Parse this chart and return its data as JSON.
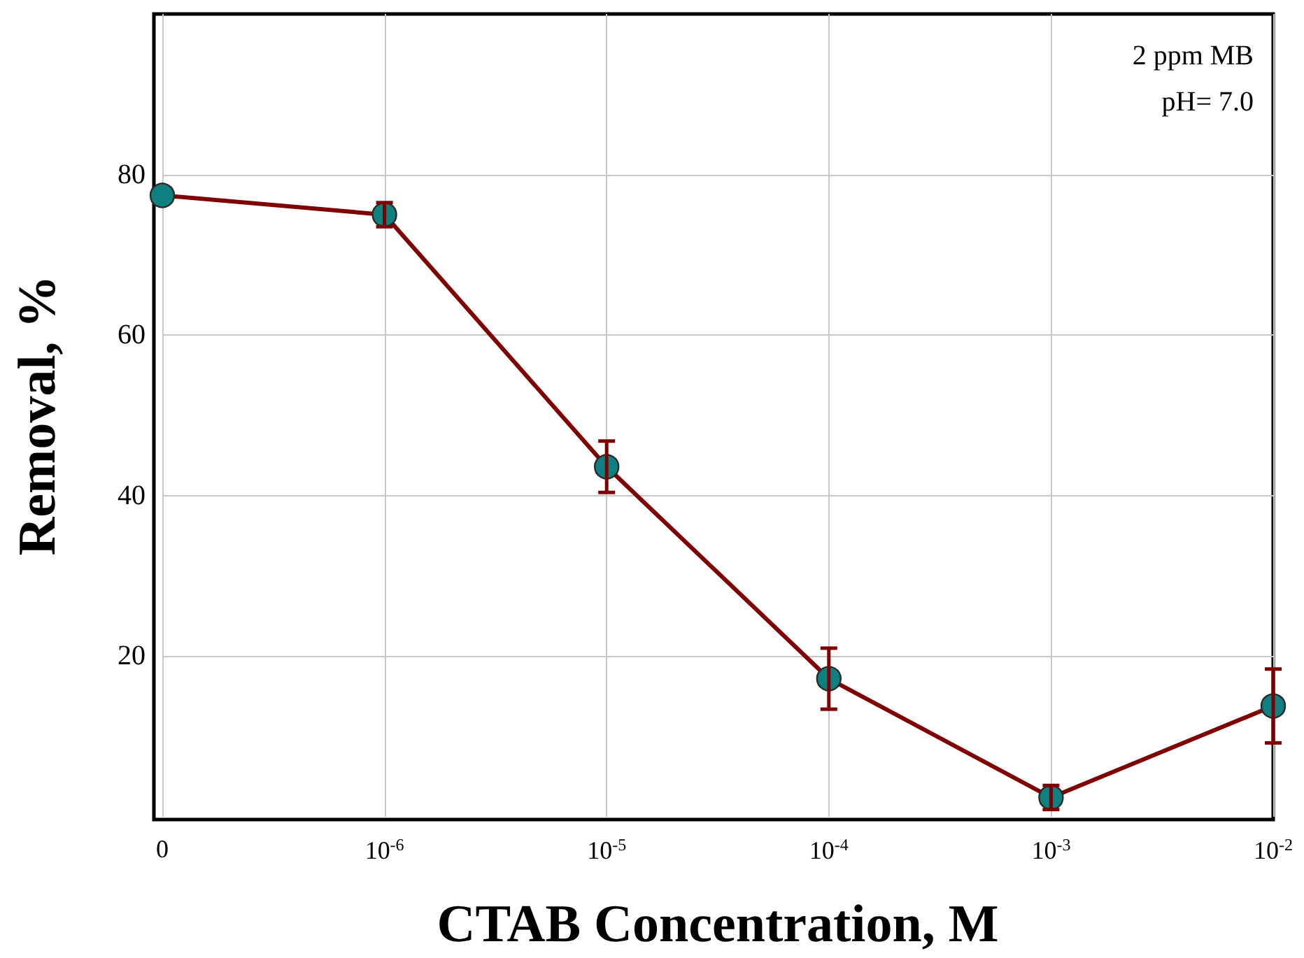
{
  "chart_data": {
    "type": "line",
    "xlabel": "CTAB Concentration, M",
    "ylabel": "Removal, %",
    "categories": [
      "0",
      "10$^{-6}$",
      "10$^{-5}$",
      "10$^{-4}$",
      "10$^{-3}$",
      "10$^{-2}$"
    ],
    "series": [
      {
        "color": "#7f0000",
        "values": [
          77.4,
          75.0,
          43.6,
          17.2,
          2.4,
          13.8
        ],
        "errors": [
          null,
          1.5,
          3.2,
          3.8,
          1.5,
          4.6
        ]
      }
    ],
    "ylim": [
      0,
      100
    ],
    "yticks": [
      20,
      40,
      60,
      80
    ],
    "grid": true,
    "marker": "circle",
    "line_style": "solid",
    "annotations": [
      "2 ppm MB",
      "pH= 7.0"
    ]
  }
}
